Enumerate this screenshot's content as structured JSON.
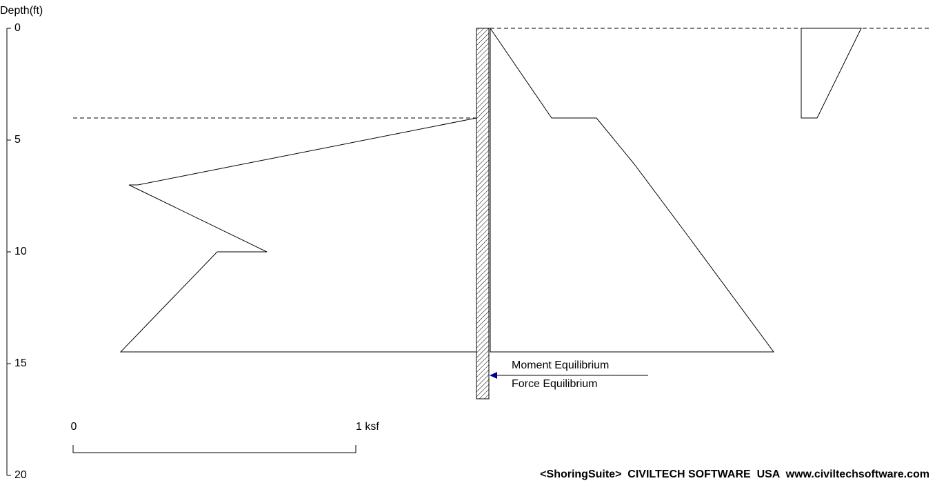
{
  "axis": {
    "label": "Depth(ft)",
    "ticks": [
      0,
      5,
      10,
      15,
      20
    ]
  },
  "scale": {
    "start": "0",
    "end": "1 ksf"
  },
  "legend": [
    "Moment Equilibrium",
    "Force Equilibrium"
  ],
  "footer": "<ShoringSuite>  CIVILTECH SOFTWARE  USA  www.civiltechsoftware.com"
}
